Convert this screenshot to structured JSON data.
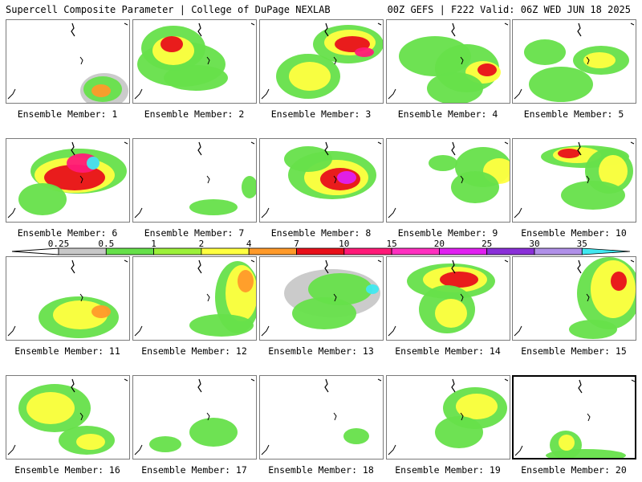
{
  "header": {
    "title_left": "Supercell Composite Parameter | College of DuPage NEXLAB",
    "title_right": "00Z GEFS | F222 Valid: 06Z WED JUN 18 2025"
  },
  "colorbar": {
    "ticks": [
      "0.25",
      "0.5",
      "1",
      "2",
      "4",
      "7",
      "10",
      "15",
      "20",
      "25",
      "30",
      "35"
    ],
    "colors": [
      "#c8c8c8",
      "#66e04a",
      "#9cf03a",
      "#ffff40",
      "#ff9a2a",
      "#e8101a",
      "#ff1a78",
      "#ff30c0",
      "#e020f0",
      "#8a30d8",
      "#b090e8",
      "#40e8f0"
    ]
  },
  "ensemble": {
    "label_prefix": "Ensemble Member:",
    "selected_member": 20,
    "members": [
      "1",
      "2",
      "3",
      "4",
      "5",
      "6",
      "7",
      "8",
      "9",
      "10",
      "11",
      "12",
      "13",
      "14",
      "15",
      "16",
      "17",
      "18",
      "19",
      "20"
    ]
  },
  "labels": [
    "Ensemble Member: 1",
    "Ensemble Member: 2",
    "Ensemble Member: 3",
    "Ensemble Member: 4",
    "Ensemble Member: 5",
    "Ensemble Member: 6",
    "Ensemble Member: 7",
    "Ensemble Member: 8",
    "Ensemble Member: 9",
    "Ensemble Member: 10",
    "Ensemble Member: 11",
    "Ensemble Member: 12",
    "Ensemble Member: 13",
    "Ensemble Member: 14",
    "Ensemble Member: 15",
    "Ensemble Member: 16",
    "Ensemble Member: 17",
    "Ensemble Member: 18",
    "Ensemble Member: 19",
    "Ensemble Member: 20"
  ]
}
